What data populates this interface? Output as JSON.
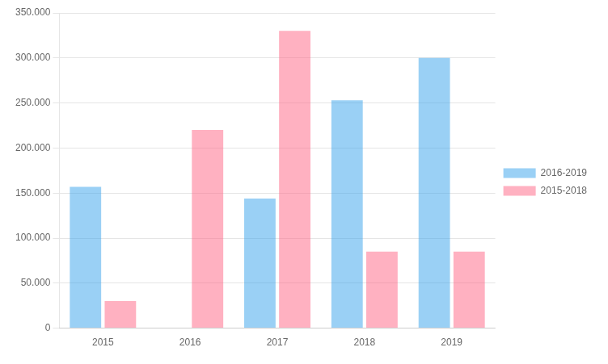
{
  "chart_data": {
    "type": "bar",
    "categories": [
      "2015",
      "2016",
      "2017",
      "2018",
      "2019"
    ],
    "series": [
      {
        "name": "2016-2019",
        "values": [
          157000,
          0,
          144000,
          253000,
          300000
        ]
      },
      {
        "name": "2015-2018",
        "values": [
          30000,
          220000,
          330000,
          85000,
          85000
        ]
      }
    ],
    "ylim": [
      0,
      350000
    ],
    "yticks": [
      0,
      {
        "value": 50000,
        "label": "50.000"
      },
      {
        "value": 100000,
        "label": "100.000"
      },
      {
        "value": 150000,
        "label": "150.000"
      },
      {
        "value": 200000,
        "label": "200.000"
      },
      {
        "value": 250000,
        "label": "250.000"
      },
      {
        "value": 300000,
        "label": "300.000"
      },
      {
        "value": 350000,
        "label": "350.000"
      }
    ],
    "grid": true,
    "legend": "right"
  }
}
